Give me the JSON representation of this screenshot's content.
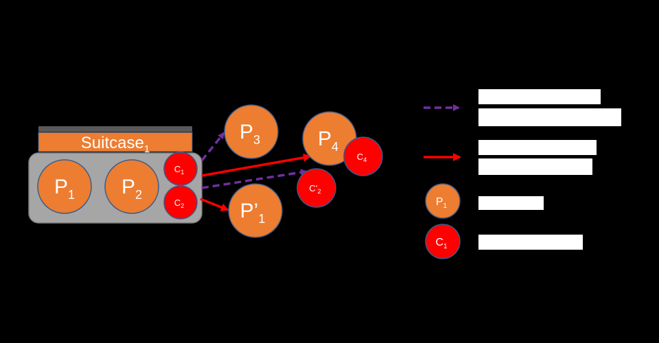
{
  "colors": {
    "background": "#000000",
    "suitcase_fill": "#a6a6a6",
    "suitcase_lid": "#595959",
    "process_fill": "#ed7d31",
    "container_fill": "#ff0000",
    "dashed_arrow": "#7030a0",
    "solid_arrow": "#ff0000",
    "label_text": "#ffffff"
  },
  "suitcase": {
    "label": "Suitcase",
    "sub": "1"
  },
  "processes": [
    {
      "id": "p1",
      "base": "P",
      "sub": "1"
    },
    {
      "id": "p2",
      "base": "P",
      "sub": "2"
    },
    {
      "id": "p3",
      "base": "P",
      "sub": "3"
    },
    {
      "id": "p4",
      "base": "P",
      "sub": "4"
    },
    {
      "id": "p1prime",
      "base": "P’",
      "sub": "1"
    }
  ],
  "containers": [
    {
      "id": "c1",
      "base": "C",
      "sub": "1"
    },
    {
      "id": "c2",
      "base": "C",
      "sub": "2"
    },
    {
      "id": "c4",
      "base": "C",
      "sub": "4"
    },
    {
      "id": "c2prime",
      "base": "C’",
      "sub": "2"
    }
  ],
  "legend": {
    "process_sample": {
      "base": "P",
      "sub": "1"
    },
    "container_sample": {
      "base": "C",
      "sub": "1"
    }
  }
}
